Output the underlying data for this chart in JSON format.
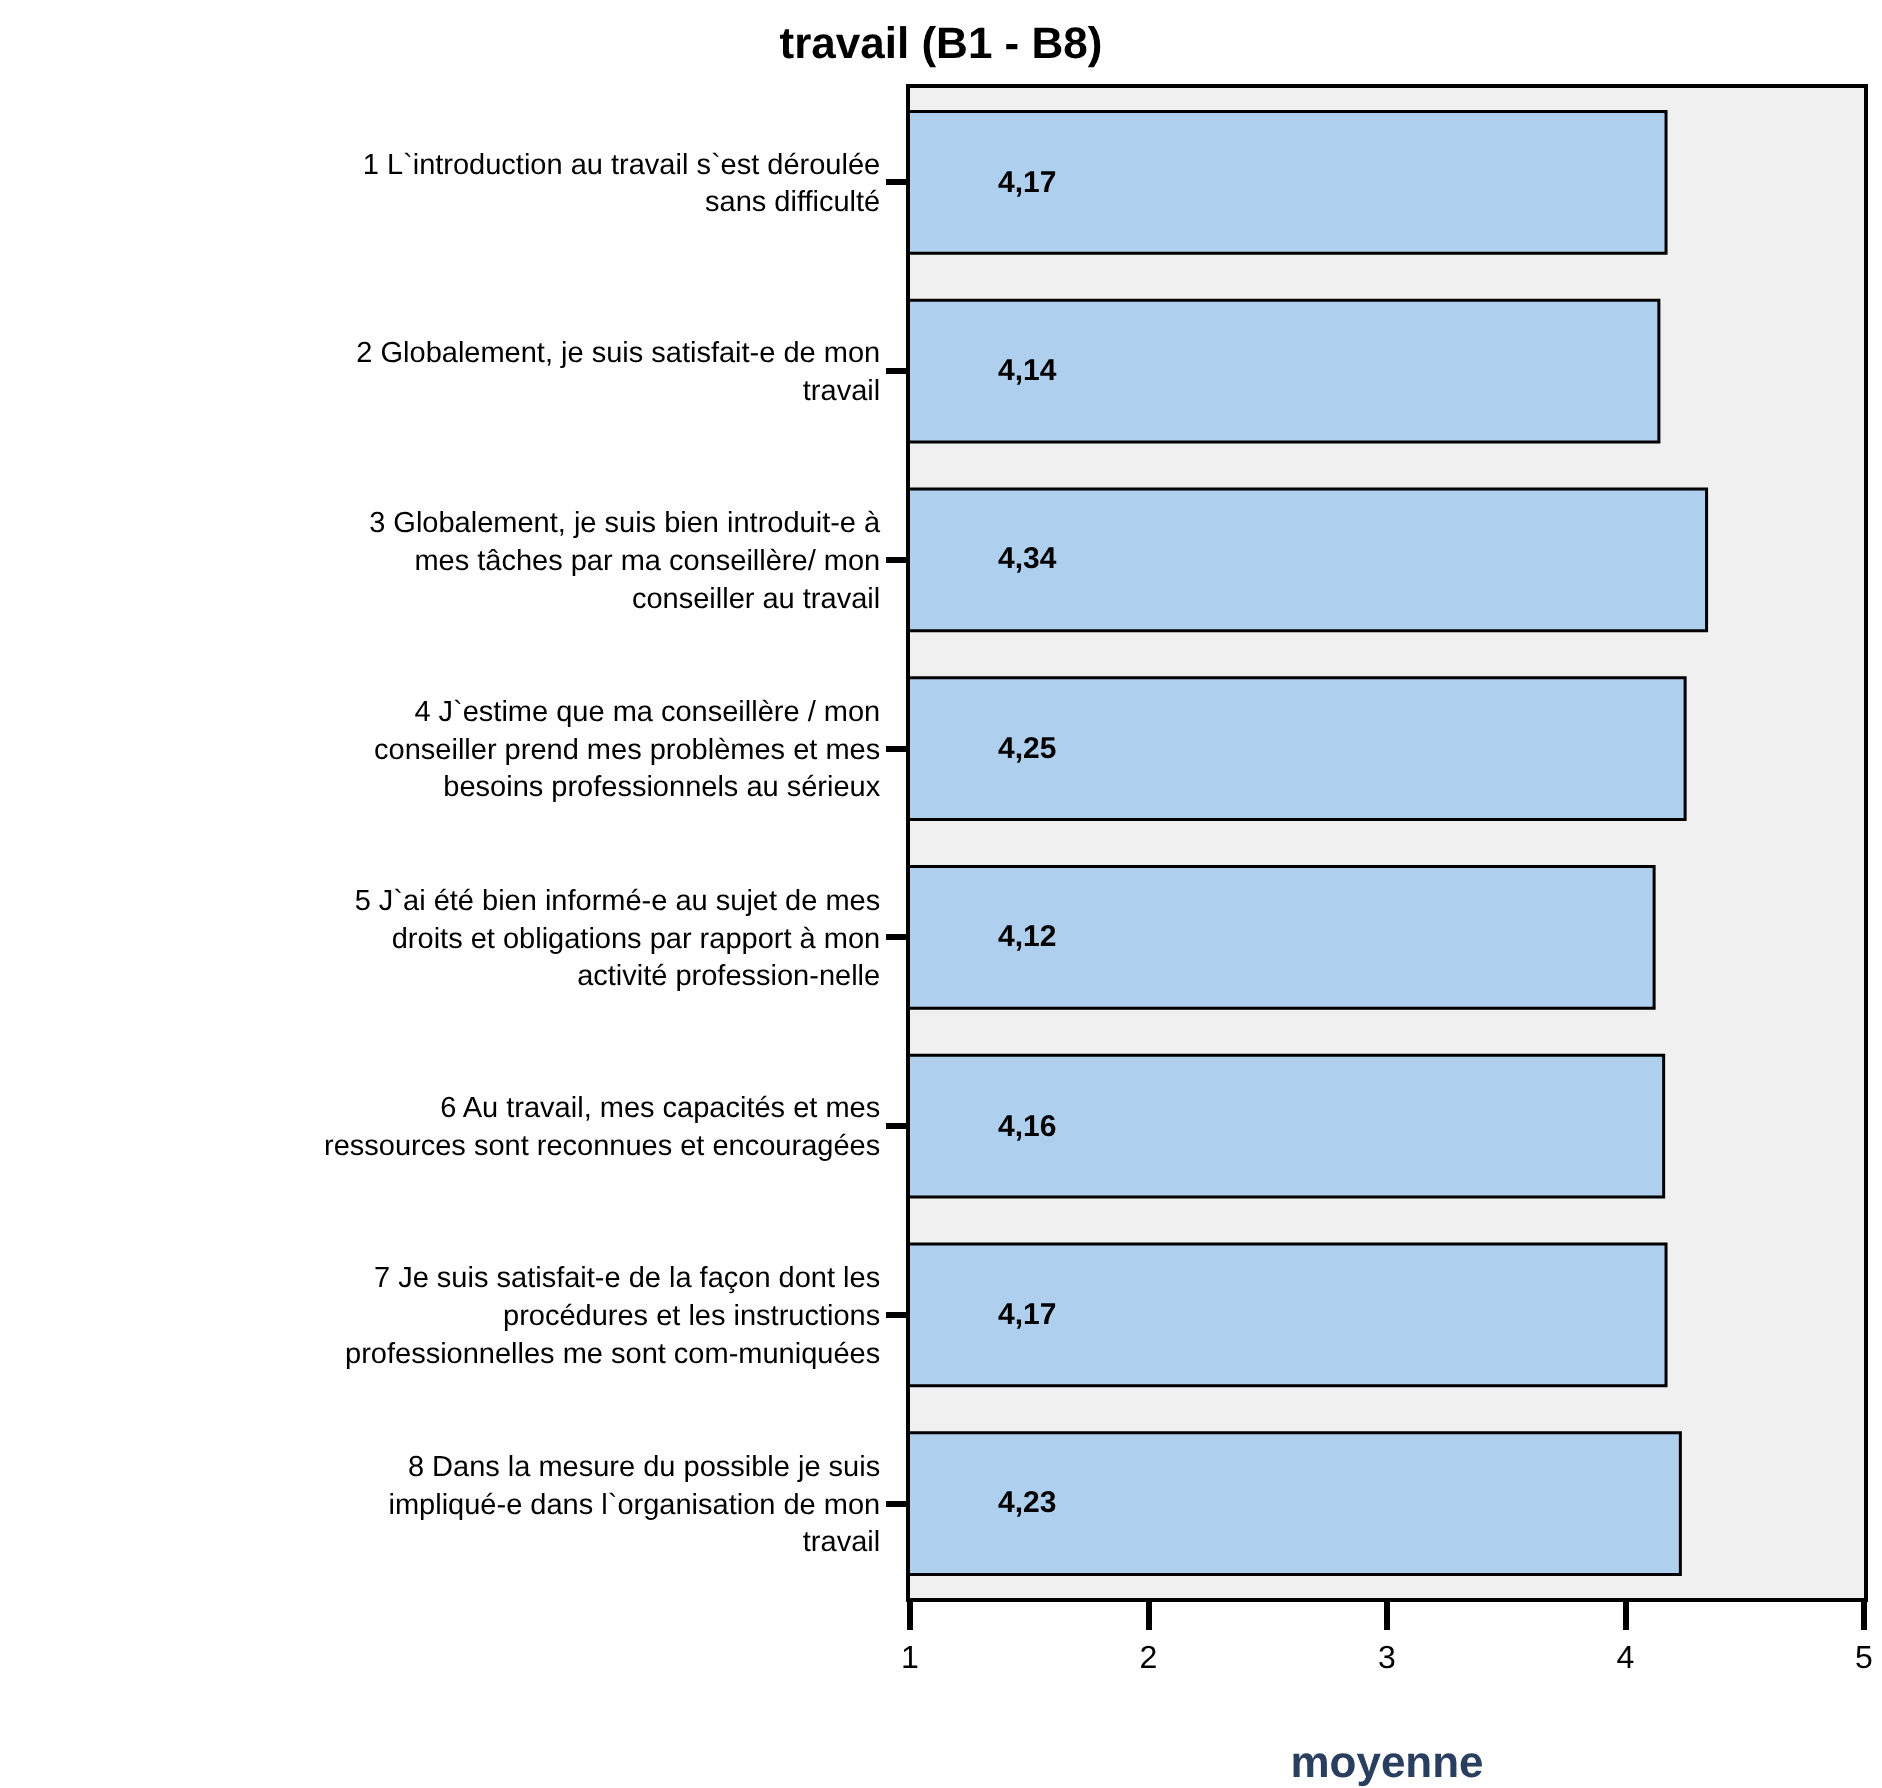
{
  "chart_data": {
    "type": "bar",
    "orientation": "horizontal",
    "title": "travail (B1 - B8)",
    "xlabel": "moyenne",
    "categories": [
      "1 L`introduction au travail s`est déroulée sans difficulté",
      "2 Globalement, je suis satisfait-e de mon travail",
      "3 Globalement, je suis bien introduit-e à mes tâches par ma conseillère/ mon conseiller au travail",
      "4 J`estime que ma conseillère / mon conseiller prend mes problèmes et mes besoins professionnels au sérieux",
      "5 J`ai été bien informé-e au sujet de mes droits et obligations par rapport à mon activité profession-nelle",
      "6 Au travail, mes capacités et mes ressources sont reconnues et encouragées",
      "7 Je suis satisfait-e de la façon dont les procédures et les instructions professionnelles me sont com-muniquées",
      "8 Dans la mesure du possible je suis impliqué-e dans l`organisation de mon travail"
    ],
    "values": [
      4.17,
      4.14,
      4.34,
      4.25,
      4.12,
      4.16,
      4.17,
      4.23
    ],
    "value_labels": [
      "4,17",
      "4,14",
      "4,34",
      "4,25",
      "4,12",
      "4,16",
      "4,17",
      "4,23"
    ],
    "color": "#aecfee",
    "xlim": [
      1,
      5
    ],
    "xticks": [
      1,
      2,
      3,
      4,
      5
    ],
    "grid": false,
    "legend": false
  }
}
